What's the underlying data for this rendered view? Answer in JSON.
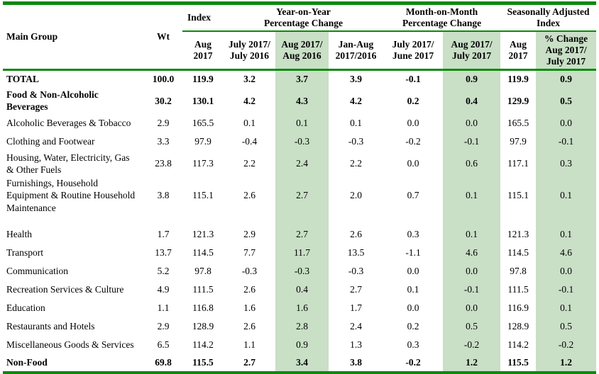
{
  "colors": {
    "border_green": "#0d8a0d",
    "shade_green": "#c9dfc6"
  },
  "table": {
    "header": {
      "main_group": "Main Group",
      "wt": "Wt",
      "group_index": "Index",
      "group_yoy": "Year-on-Year\nPercentage Change",
      "group_mom": "Month-on-Month\nPercentage Change",
      "group_sa": "Seasonally Adjusted\nIndex",
      "subheaders": [
        "Aug\n2017",
        "July 2017/\nJuly 2016",
        "Aug 2017/\nAug 2016",
        "Jan-Aug\n2017/2016",
        "July 2017/\nJune 2017",
        "Aug 2017/\nJuly 2017",
        "Aug\n2017",
        "% Change\nAug 2017/\nJuly 2017"
      ]
    },
    "rows": [
      {
        "name": "TOTAL",
        "bold": true,
        "values": [
          "100.0",
          "119.9",
          "3.2",
          "3.7",
          "3.9",
          "-0.1",
          "0.9",
          "119.9",
          "0.9"
        ]
      },
      {
        "name": "Food & Non-Alcoholic Beverages",
        "bold": true,
        "values": [
          "30.2",
          "130.1",
          "4.2",
          "4.3",
          "4.2",
          "0.2",
          "0.4",
          "129.9",
          "0.5"
        ]
      },
      {
        "name": "Alcoholic Beverages & Tobacco",
        "values": [
          "2.9",
          "165.5",
          "0.1",
          "0.1",
          "0.1",
          "0.0",
          "0.0",
          "165.5",
          "0.0"
        ]
      },
      {
        "name": "Clothing and Footwear",
        "values": [
          "3.3",
          "97.9",
          "-0.4",
          "-0.3",
          "-0.3",
          "-0.2",
          "-0.1",
          "97.9",
          "-0.1"
        ]
      },
      {
        "name": "Housing, Water, Electricity, Gas & Other Fuels",
        "values": [
          "23.8",
          "117.3",
          "2.2",
          "2.4",
          "2.2",
          "0.0",
          "0.6",
          "117.1",
          "0.3"
        ]
      },
      {
        "name": "Furnishings, Household Equipment & Routine Household Maintenance",
        "tall": true,
        "values": [
          "3.8",
          "115.1",
          "2.6",
          "2.7",
          "2.0",
          "0.7",
          "0.1",
          "115.1",
          "0.1"
        ]
      },
      {
        "name": "Health",
        "values": [
          "1.7",
          "121.3",
          "2.9",
          "2.7",
          "2.6",
          "0.3",
          "0.1",
          "121.3",
          "0.1"
        ]
      },
      {
        "name": "Transport",
        "values": [
          "13.7",
          "114.5",
          "7.7",
          "11.7",
          "13.5",
          "-1.1",
          "4.6",
          "114.5",
          "4.6"
        ]
      },
      {
        "name": "Communication",
        "values": [
          "5.2",
          "97.8",
          "-0.3",
          "-0.3",
          "-0.3",
          "0.0",
          "0.0",
          "97.8",
          "0.0"
        ]
      },
      {
        "name": "Recreation Services & Culture",
        "values": [
          "4.9",
          "111.5",
          "2.6",
          "0.4",
          "2.7",
          "0.1",
          "-0.1",
          "111.5",
          "-0.1"
        ]
      },
      {
        "name": "Education",
        "values": [
          "1.1",
          "116.8",
          "1.6",
          "1.6",
          "1.7",
          "0.0",
          "0.0",
          "116.9",
          "0.1"
        ]
      },
      {
        "name": "Restaurants and Hotels",
        "values": [
          "2.9",
          "128.9",
          "2.6",
          "2.8",
          "2.4",
          "0.2",
          "0.5",
          "128.9",
          "0.5"
        ]
      },
      {
        "name": "Miscellaneous Goods & Services",
        "values": [
          "6.5",
          "114.2",
          "1.1",
          "0.9",
          "1.3",
          "0.3",
          "-0.2",
          "114.2",
          "-0.2"
        ]
      },
      {
        "name": "Non-Food",
        "bold": true,
        "values": [
          "69.8",
          "115.5",
          "2.7",
          "3.4",
          "3.8",
          "-0.2",
          "1.2",
          "115.5",
          "1.2"
        ]
      }
    ],
    "shaded_value_columns": [
      3,
      6,
      8
    ]
  }
}
